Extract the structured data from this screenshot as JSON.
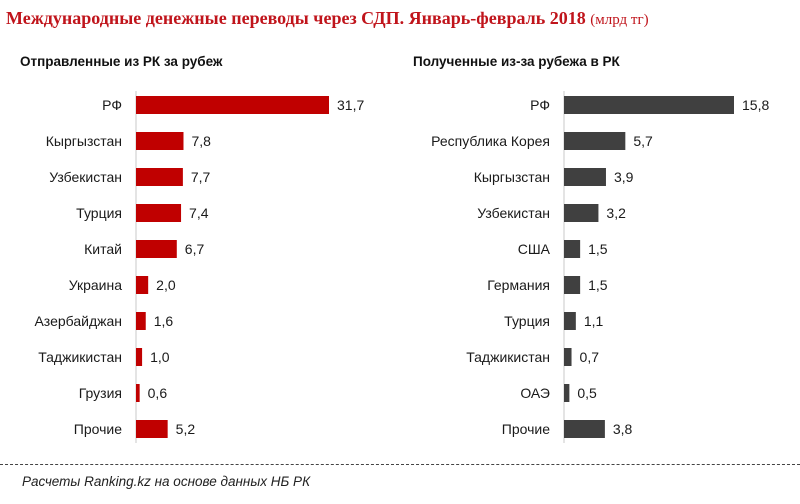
{
  "title": {
    "main": "Международные денежные переводы через СДП. Январь-февраль 2018",
    "unit": "(млрд тг)"
  },
  "source": "Расчеты Ranking.kz на основе данных НБ РК",
  "colors": {
    "left_bar": "#c00000",
    "right_bar": "#404040",
    "title": "#c0141b"
  },
  "chart_data": [
    {
      "type": "bar",
      "orientation": "horizontal",
      "title": "Отправленные из РК за рубеж",
      "categories": [
        "РФ",
        "Кыргызстан",
        "Узбекистан",
        "Турция",
        "Китай",
        "Украина",
        "Азербайджан",
        "Таджикистан",
        "Грузия",
        "Прочие"
      ],
      "values": [
        31.7,
        7.8,
        7.7,
        7.4,
        6.7,
        2.0,
        1.6,
        1.0,
        0.6,
        5.2
      ],
      "labels": [
        "31,7",
        "7,8",
        "7,7",
        "7,4",
        "6,7",
        "2,0",
        "1,6",
        "1,0",
        "0,6",
        "5,2"
      ],
      "xlim": [
        0,
        31.7
      ],
      "xlabel": "",
      "ylabel": "",
      "grid": false
    },
    {
      "type": "bar",
      "orientation": "horizontal",
      "title": "Полученные из-за рубежа в РК",
      "categories": [
        "РФ",
        "Республика Корея",
        "Кыргызстан",
        "Узбекистан",
        "США",
        "Германия",
        "Турция",
        "Таджикистан",
        "ОАЭ",
        "Прочие"
      ],
      "values": [
        15.8,
        5.7,
        3.9,
        3.2,
        1.5,
        1.5,
        1.1,
        0.7,
        0.5,
        3.8
      ],
      "labels": [
        "15,8",
        "5,7",
        "3,9",
        "3,2",
        "1,5",
        "1,5",
        "1,1",
        "0,7",
        "0,5",
        "3,8"
      ],
      "xlim": [
        0,
        15.8
      ],
      "xlabel": "",
      "ylabel": "",
      "grid": false
    }
  ]
}
